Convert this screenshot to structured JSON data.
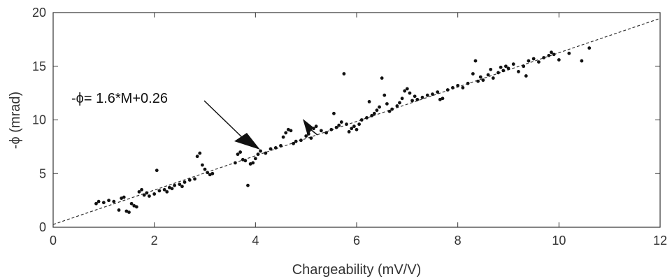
{
  "chart_data": {
    "type": "scatter",
    "xlabel": "Chargeability (mV/V)",
    "ylabel": "-ϕ (mrad)",
    "xlim": [
      0,
      12
    ],
    "ylim": [
      0,
      20
    ],
    "xticks": [
      0,
      2,
      4,
      6,
      8,
      10,
      12
    ],
    "yticks": [
      0,
      5,
      10,
      15,
      20
    ],
    "grid": false,
    "legend": "none",
    "fit_line": {
      "slope": 1.6,
      "intercept": 0.26,
      "style": "dashed"
    },
    "annotation": {
      "text": "-ϕ= 1.6*M+0.26"
    },
    "points": [
      [
        0.85,
        2.2
      ],
      [
        0.9,
        2.4
      ],
      [
        1.0,
        2.3
      ],
      [
        1.1,
        2.5
      ],
      [
        1.2,
        2.4
      ],
      [
        1.3,
        1.6
      ],
      [
        1.35,
        2.7
      ],
      [
        1.4,
        2.8
      ],
      [
        1.45,
        1.5
      ],
      [
        1.5,
        1.4
      ],
      [
        1.55,
        2.2
      ],
      [
        1.6,
        2.0
      ],
      [
        1.65,
        1.9
      ],
      [
        1.7,
        3.3
      ],
      [
        1.75,
        3.5
      ],
      [
        1.8,
        3.0
      ],
      [
        1.85,
        3.2
      ],
      [
        1.9,
        2.9
      ],
      [
        2.0,
        3.1
      ],
      [
        2.05,
        5.3
      ],
      [
        2.1,
        3.4
      ],
      [
        2.2,
        3.5
      ],
      [
        2.25,
        3.3
      ],
      [
        2.3,
        3.7
      ],
      [
        2.35,
        3.6
      ],
      [
        2.4,
        3.9
      ],
      [
        2.5,
        4.0
      ],
      [
        2.55,
        3.8
      ],
      [
        2.6,
        4.2
      ],
      [
        2.7,
        4.4
      ],
      [
        2.8,
        4.5
      ],
      [
        2.85,
        6.6
      ],
      [
        2.9,
        6.9
      ],
      [
        2.95,
        5.8
      ],
      [
        3.0,
        5.4
      ],
      [
        3.05,
        5.1
      ],
      [
        3.1,
        4.9
      ],
      [
        3.15,
        5.0
      ],
      [
        3.6,
        6.0
      ],
      [
        3.65,
        6.8
      ],
      [
        3.7,
        7.0
      ],
      [
        3.75,
        6.3
      ],
      [
        3.8,
        6.2
      ],
      [
        3.85,
        3.9
      ],
      [
        3.9,
        5.9
      ],
      [
        3.95,
        6.0
      ],
      [
        4.0,
        6.4
      ],
      [
        4.05,
        6.8
      ],
      [
        4.1,
        7.1
      ],
      [
        4.2,
        6.9
      ],
      [
        4.3,
        7.3
      ],
      [
        4.4,
        7.4
      ],
      [
        4.5,
        7.6
      ],
      [
        4.55,
        8.4
      ],
      [
        4.6,
        8.8
      ],
      [
        4.65,
        9.1
      ],
      [
        4.7,
        9.0
      ],
      [
        4.75,
        7.8
      ],
      [
        4.8,
        8.0
      ],
      [
        4.9,
        8.1
      ],
      [
        5.0,
        8.5
      ],
      [
        5.05,
        8.7
      ],
      [
        5.1,
        8.3
      ],
      [
        5.15,
        9.2
      ],
      [
        5.2,
        9.4
      ],
      [
        5.3,
        9.0
      ],
      [
        5.4,
        8.8
      ],
      [
        5.5,
        9.1
      ],
      [
        5.55,
        10.6
      ],
      [
        5.6,
        9.3
      ],
      [
        5.65,
        9.5
      ],
      [
        5.7,
        9.8
      ],
      [
        5.75,
        14.3
      ],
      [
        5.8,
        9.6
      ],
      [
        5.85,
        8.9
      ],
      [
        5.9,
        9.2
      ],
      [
        5.95,
        9.4
      ],
      [
        6.0,
        9.1
      ],
      [
        6.05,
        9.6
      ],
      [
        6.1,
        10.0
      ],
      [
        6.2,
        10.2
      ],
      [
        6.25,
        11.7
      ],
      [
        6.3,
        10.4
      ],
      [
        6.35,
        10.6
      ],
      [
        6.4,
        10.9
      ],
      [
        6.45,
        11.2
      ],
      [
        6.5,
        13.9
      ],
      [
        6.55,
        12.3
      ],
      [
        6.6,
        11.5
      ],
      [
        6.65,
        10.8
      ],
      [
        6.7,
        11.0
      ],
      [
        6.8,
        11.3
      ],
      [
        6.85,
        11.6
      ],
      [
        6.9,
        12.0
      ],
      [
        6.95,
        12.7
      ],
      [
        7.0,
        12.9
      ],
      [
        7.05,
        12.5
      ],
      [
        7.1,
        11.8
      ],
      [
        7.15,
        12.2
      ],
      [
        7.2,
        11.9
      ],
      [
        7.3,
        12.1
      ],
      [
        7.4,
        12.3
      ],
      [
        7.5,
        12.4
      ],
      [
        7.6,
        12.6
      ],
      [
        7.65,
        11.9
      ],
      [
        7.7,
        12.0
      ],
      [
        7.8,
        12.8
      ],
      [
        7.9,
        13.0
      ],
      [
        8.0,
        13.2
      ],
      [
        8.1,
        13.0
      ],
      [
        8.2,
        13.4
      ],
      [
        8.3,
        14.3
      ],
      [
        8.35,
        15.5
      ],
      [
        8.4,
        13.6
      ],
      [
        8.45,
        14.0
      ],
      [
        8.5,
        13.7
      ],
      [
        8.6,
        14.2
      ],
      [
        8.65,
        14.7
      ],
      [
        8.7,
        13.9
      ],
      [
        8.8,
        14.4
      ],
      [
        8.85,
        14.9
      ],
      [
        8.9,
        14.6
      ],
      [
        8.95,
        15.0
      ],
      [
        9.0,
        14.8
      ],
      [
        9.1,
        15.2
      ],
      [
        9.2,
        14.5
      ],
      [
        9.3,
        15.0
      ],
      [
        9.35,
        14.1
      ],
      [
        9.4,
        15.5
      ],
      [
        9.5,
        15.7
      ],
      [
        9.6,
        15.4
      ],
      [
        9.7,
        15.8
      ],
      [
        9.8,
        16.0
      ],
      [
        9.85,
        16.3
      ],
      [
        9.9,
        16.1
      ],
      [
        10.0,
        15.6
      ],
      [
        10.2,
        16.2
      ],
      [
        10.45,
        15.5
      ],
      [
        10.6,
        16.7
      ]
    ]
  }
}
